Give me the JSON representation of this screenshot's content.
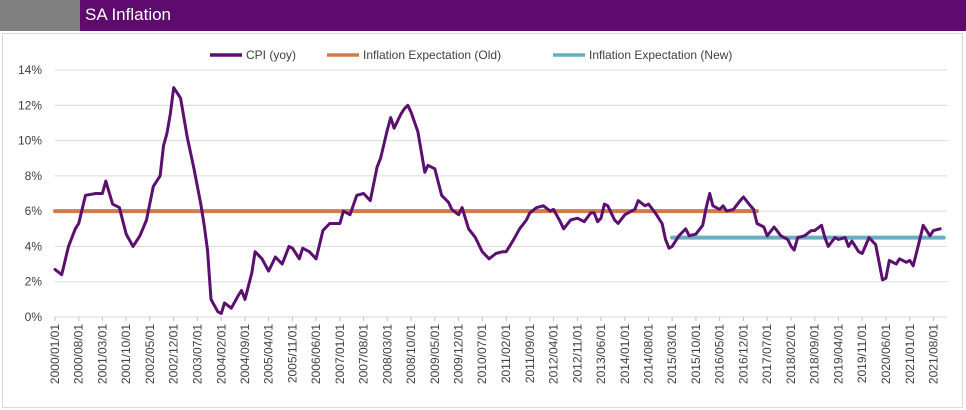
{
  "header": {
    "title": "SA Inflation"
  },
  "colors": {
    "header_bg": "#5e0a6e",
    "header_grey": "#808080",
    "cpi": "#5b0f6e",
    "old": "#d27a4a",
    "new": "#69adc2"
  },
  "chart_data": {
    "type": "line",
    "title": "",
    "xlabel": "",
    "ylabel": "",
    "ylim": [
      0,
      14
    ],
    "y_ticks": [
      "0%",
      "2%",
      "4%",
      "6%",
      "8%",
      "10%",
      "12%",
      "14%"
    ],
    "legend_position": "top",
    "grid": "horizontal",
    "x_tick_labels": [
      "2000/01/01",
      "2000/08/01",
      "2001/03/01",
      "2001/10/01",
      "2002/05/01",
      "2002/12/01",
      "2003/07/01",
      "2004/02/01",
      "2004/09/01",
      "2005/04/01",
      "2005/11/01",
      "2006/06/01",
      "2007/01/01",
      "2007/08/01",
      "2008/03/01",
      "2008/10/01",
      "2009/05/01",
      "2009/12/01",
      "2010/07/01",
      "2011/02/01",
      "2011/09/01",
      "2012/04/01",
      "2012/11/01",
      "2013/06/01",
      "2014/01/01",
      "2014/08/01",
      "2015/03/01",
      "2015/10/01",
      "2016/05/01",
      "2016/12/01",
      "2017/07/01",
      "2018/02/01",
      "2018/09/01",
      "2019/04/01",
      "2019/11/01",
      "2020/06/01",
      "2021/01/01",
      "2021/08/01"
    ],
    "series": [
      {
        "name": "CPI (yoy)",
        "color": "#5b0f6e",
        "points": [
          [
            "2000/01/01",
            2.7
          ],
          [
            "2000/03/01",
            2.4
          ],
          [
            "2000/05/01",
            4.0
          ],
          [
            "2000/07/01",
            5.0
          ],
          [
            "2000/08/01",
            5.3
          ],
          [
            "2000/10/01",
            6.9
          ],
          [
            "2001/01/01",
            7.0
          ],
          [
            "2001/03/01",
            7.0
          ],
          [
            "2001/04/01",
            7.7
          ],
          [
            "2001/06/01",
            6.4
          ],
          [
            "2001/08/01",
            6.2
          ],
          [
            "2001/10/01",
            4.7
          ],
          [
            "2001/12/01",
            4.0
          ],
          [
            "2002/02/01",
            4.6
          ],
          [
            "2002/04/01",
            5.5
          ],
          [
            "2002/06/01",
            7.4
          ],
          [
            "2002/08/01",
            8.0
          ],
          [
            "2002/09/01",
            9.7
          ],
          [
            "2002/10/01",
            10.4
          ],
          [
            "2002/11/01",
            11.5
          ],
          [
            "2002/12/01",
            13.0
          ],
          [
            "2003/02/01",
            12.4
          ],
          [
            "2003/04/01",
            10.2
          ],
          [
            "2003/06/01",
            8.4
          ],
          [
            "2003/08/01",
            6.4
          ],
          [
            "2003/09/01",
            5.2
          ],
          [
            "2003/10/01",
            3.8
          ],
          [
            "2003/11/01",
            1.0
          ],
          [
            "2004/01/01",
            0.3
          ],
          [
            "2004/02/01",
            0.2
          ],
          [
            "2004/03/01",
            0.8
          ],
          [
            "2004/05/01",
            0.5
          ],
          [
            "2004/07/01",
            1.2
          ],
          [
            "2004/08/01",
            1.5
          ],
          [
            "2004/09/01",
            1.0
          ],
          [
            "2004/11/01",
            2.5
          ],
          [
            "2004/12/01",
            3.7
          ],
          [
            "2005/02/01",
            3.3
          ],
          [
            "2005/04/01",
            2.6
          ],
          [
            "2005/06/01",
            3.4
          ],
          [
            "2005/08/01",
            3.0
          ],
          [
            "2005/10/01",
            4.0
          ],
          [
            "2005/11/01",
            3.9
          ],
          [
            "2006/01/01",
            3.3
          ],
          [
            "2006/02/01",
            3.9
          ],
          [
            "2006/04/01",
            3.7
          ],
          [
            "2006/06/01",
            3.3
          ],
          [
            "2006/08/01",
            4.9
          ],
          [
            "2006/10/01",
            5.3
          ],
          [
            "2006/12/01",
            5.3
          ],
          [
            "2007/01/01",
            5.3
          ],
          [
            "2007/02/01",
            6.0
          ],
          [
            "2007/04/01",
            5.8
          ],
          [
            "2007/06/01",
            6.9
          ],
          [
            "2007/08/01",
            7.0
          ],
          [
            "2007/10/01",
            6.6
          ],
          [
            "2007/12/01",
            8.5
          ],
          [
            "2008/01/01",
            9.0
          ],
          [
            "2008/03/01",
            10.6
          ],
          [
            "2008/04/01",
            11.3
          ],
          [
            "2008/05/01",
            10.7
          ],
          [
            "2008/07/01",
            11.5
          ],
          [
            "2008/08/01",
            11.8
          ],
          [
            "2008/09/01",
            12.0
          ],
          [
            "2008/10/01",
            11.6
          ],
          [
            "2008/12/01",
            10.5
          ],
          [
            "2009/02/01",
            8.2
          ],
          [
            "2009/03/01",
            8.6
          ],
          [
            "2009/05/01",
            8.4
          ],
          [
            "2009/07/01",
            6.9
          ],
          [
            "2009/09/01",
            6.5
          ],
          [
            "2009/10/01",
            6.1
          ],
          [
            "2009/12/01",
            5.8
          ],
          [
            "2010/01/01",
            6.2
          ],
          [
            "2010/03/01",
            5.0
          ],
          [
            "2010/05/01",
            4.5
          ],
          [
            "2010/07/01",
            3.7
          ],
          [
            "2010/09/01",
            3.3
          ],
          [
            "2010/11/01",
            3.6
          ],
          [
            "2011/01/01",
            3.7
          ],
          [
            "2011/02/01",
            3.7
          ],
          [
            "2011/04/01",
            4.3
          ],
          [
            "2011/06/01",
            5.0
          ],
          [
            "2011/08/01",
            5.5
          ],
          [
            "2011/09/01",
            5.9
          ],
          [
            "2011/11/01",
            6.2
          ],
          [
            "2012/01/01",
            6.3
          ],
          [
            "2012/03/01",
            6.0
          ],
          [
            "2012/04/01",
            6.1
          ],
          [
            "2012/06/01",
            5.4
          ],
          [
            "2012/07/01",
            5.0
          ],
          [
            "2012/09/01",
            5.5
          ],
          [
            "2012/11/01",
            5.6
          ],
          [
            "2013/01/01",
            5.4
          ],
          [
            "2013/03/01",
            5.9
          ],
          [
            "2013/04/01",
            5.9
          ],
          [
            "2013/05/01",
            5.4
          ],
          [
            "2013/06/01",
            5.6
          ],
          [
            "2013/07/01",
            6.4
          ],
          [
            "2013/08/01",
            6.3
          ],
          [
            "2013/10/01",
            5.5
          ],
          [
            "2013/11/01",
            5.3
          ],
          [
            "2014/01/01",
            5.8
          ],
          [
            "2014/03/01",
            6.0
          ],
          [
            "2014/04/01",
            6.1
          ],
          [
            "2014/05/01",
            6.6
          ],
          [
            "2014/07/01",
            6.3
          ],
          [
            "2014/08/01",
            6.4
          ],
          [
            "2014/10/01",
            5.9
          ],
          [
            "2014/12/01",
            5.3
          ],
          [
            "2015/01/01",
            4.4
          ],
          [
            "2015/02/01",
            3.9
          ],
          [
            "2015/03/01",
            4.0
          ],
          [
            "2015/05/01",
            4.6
          ],
          [
            "2015/07/01",
            5.0
          ],
          [
            "2015/08/01",
            4.6
          ],
          [
            "2015/10/01",
            4.7
          ],
          [
            "2015/12/01",
            5.2
          ],
          [
            "2016/01/01",
            6.2
          ],
          [
            "2016/02/01",
            7.0
          ],
          [
            "2016/03/01",
            6.3
          ],
          [
            "2016/05/01",
            6.1
          ],
          [
            "2016/06/01",
            6.3
          ],
          [
            "2016/07/01",
            6.0
          ],
          [
            "2016/09/01",
            6.1
          ],
          [
            "2016/11/01",
            6.6
          ],
          [
            "2016/12/01",
            6.8
          ],
          [
            "2017/02/01",
            6.3
          ],
          [
            "2017/03/01",
            6.1
          ],
          [
            "2017/04/01",
            5.3
          ],
          [
            "2017/06/01",
            5.1
          ],
          [
            "2017/07/01",
            4.6
          ],
          [
            "2017/09/01",
            5.1
          ],
          [
            "2017/11/01",
            4.6
          ],
          [
            "2018/01/01",
            4.4
          ],
          [
            "2018/02/01",
            4.0
          ],
          [
            "2018/03/01",
            3.8
          ],
          [
            "2018/04/01",
            4.5
          ],
          [
            "2018/06/01",
            4.6
          ],
          [
            "2018/08/01",
            4.9
          ],
          [
            "2018/09/01",
            4.9
          ],
          [
            "2018/11/01",
            5.2
          ],
          [
            "2018/12/01",
            4.5
          ],
          [
            "2019/01/01",
            4.0
          ],
          [
            "2019/03/01",
            4.5
          ],
          [
            "2019/04/01",
            4.4
          ],
          [
            "2019/06/01",
            4.5
          ],
          [
            "2019/07/01",
            4.0
          ],
          [
            "2019/08/01",
            4.3
          ],
          [
            "2019/10/01",
            3.7
          ],
          [
            "2019/11/01",
            3.6
          ],
          [
            "2020/01/01",
            4.5
          ],
          [
            "2020/03/01",
            4.1
          ],
          [
            "2020/05/01",
            2.1
          ],
          [
            "2020/06/01",
            2.2
          ],
          [
            "2020/07/01",
            3.2
          ],
          [
            "2020/09/01",
            3.0
          ],
          [
            "2020/10/01",
            3.3
          ],
          [
            "2020/12/01",
            3.1
          ],
          [
            "2021/01/01",
            3.2
          ],
          [
            "2021/02/01",
            2.9
          ],
          [
            "2021/04/01",
            4.4
          ],
          [
            "2021/05/01",
            5.2
          ],
          [
            "2021/07/01",
            4.6
          ],
          [
            "2021/08/01",
            4.9
          ],
          [
            "2021/10/01",
            5.0
          ]
        ]
      },
      {
        "name": "Inflation Expectation (Old)",
        "color": "#d27a4a",
        "points": [
          [
            "2000/01/01",
            6.0
          ],
          [
            "2017/04/01",
            6.0
          ]
        ]
      },
      {
        "name": "Inflation Expectation (New)",
        "color": "#69adc2",
        "points": [
          [
            "2015/03/01",
            4.5
          ],
          [
            "2021/11/01",
            4.5
          ]
        ]
      }
    ]
  }
}
